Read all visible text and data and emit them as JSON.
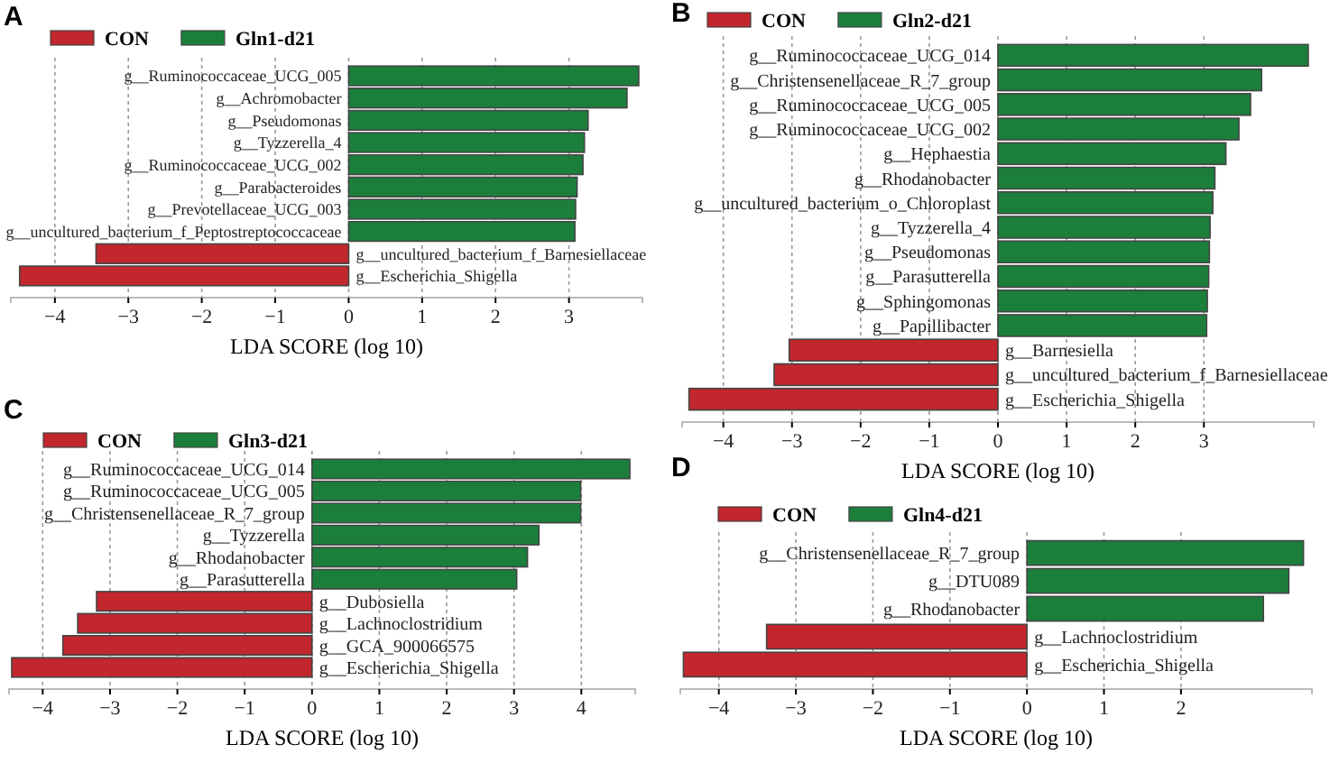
{
  "chart_data": [
    {
      "type": "bar",
      "orientation": "horizontal",
      "title": "A",
      "xlabel": "LDA SCORE (log 10)",
      "xlim": [
        -4.6,
        4.0
      ],
      "xticks": [
        -4,
        -3,
        -2,
        -1,
        0,
        1,
        2,
        3
      ],
      "grid": "x",
      "legend": "top left",
      "categories": [
        "g__Ruminococcaceae_UCG_005",
        "g__Achromobacter",
        "g__Pseudomonas",
        "g__Tyzzerella_4",
        "g__Ruminococcaceae_UCG_002",
        "g__Parabacteroides",
        "g__Prevotellaceae_UCG_003",
        "g__uncultured_bacterium_f_Peptostreptococcaceae",
        "g__uncultured_bacterium_f_Barnesiellaceae",
        "g__Escherichia_Shigella"
      ],
      "series": [
        {
          "name": "CON",
          "color": "#c1272d",
          "values": [
            null,
            null,
            null,
            null,
            null,
            null,
            null,
            null,
            -3.44,
            -4.48
          ]
        },
        {
          "name": "Gln1-d21",
          "color": "#1b7f3b",
          "values": [
            3.95,
            3.79,
            3.26,
            3.21,
            3.19,
            3.11,
            3.09,
            3.08,
            null,
            null
          ]
        }
      ]
    },
    {
      "type": "bar",
      "orientation": "horizontal",
      "title": "B",
      "xlabel": "LDA SCORE (log 10)",
      "xlim": [
        -4.6,
        4.6
      ],
      "xticks": [
        -4,
        -3,
        -2,
        -1,
        0,
        1,
        2,
        3
      ],
      "grid": "x",
      "legend": "top left",
      "categories": [
        "g__Ruminococcaceae_UCG_014",
        "g__Christensenellaceae_R_7_group",
        "g__Ruminococcaceae_UCG_005",
        "g__Ruminococcaceae_UCG_002",
        "g__Hephaestia",
        "g__Rhodanobacter",
        "g__uncultured_bacterium_o_Chloroplast",
        "g__Tyzzerella_4",
        "g__Pseudomonas",
        "g__Parasutterella",
        "g__Sphingomonas",
        "g__Papillibacter",
        "g__Barnesiella",
        "g__uncultured_bacterium_f_Barnesiellaceae",
        "g__Escherichia_Shigella"
      ],
      "series": [
        {
          "name": "CON",
          "color": "#c1272d",
          "values": [
            null,
            null,
            null,
            null,
            null,
            null,
            null,
            null,
            null,
            null,
            null,
            null,
            -3.04,
            -3.26,
            -4.5
          ]
        },
        {
          "name": "Gln2-d21",
          "color": "#1b7f3b",
          "values": [
            4.52,
            3.84,
            3.68,
            3.51,
            3.32,
            3.16,
            3.13,
            3.09,
            3.08,
            3.07,
            3.05,
            3.04,
            null,
            null,
            null
          ]
        }
      ]
    },
    {
      "type": "bar",
      "orientation": "horizontal",
      "title": "C",
      "xlabel": "LDA SCORE (log 10)",
      "xlim": [
        -4.5,
        4.8
      ],
      "xticks": [
        -4,
        -3,
        -2,
        -1,
        0,
        1,
        2,
        3,
        4
      ],
      "grid": "x",
      "legend": "top left",
      "categories": [
        "g__Ruminococcaceae_UCG_014",
        "g__Ruminococcaceae_UCG_005",
        "g__Christensenellaceae_R_7_group",
        "g__Tyzzerella",
        "g__Rhodanobacter",
        "g__Parasutterella",
        "g__Dubosiella",
        "g__Lachnoclostridium",
        "g__GCA_900066575",
        "g__Escherichia_Shigella"
      ],
      "series": [
        {
          "name": "CON",
          "color": "#c1272d",
          "values": [
            null,
            null,
            null,
            null,
            null,
            null,
            -3.2,
            -3.48,
            -3.7,
            -4.46
          ]
        },
        {
          "name": "Gln3-d21",
          "color": "#1b7f3b",
          "values": [
            4.72,
            3.99,
            3.99,
            3.37,
            3.2,
            3.04,
            null,
            null,
            null,
            null
          ]
        }
      ]
    },
    {
      "type": "bar",
      "orientation": "horizontal",
      "title": "D",
      "xlabel": "LDA SCORE (log 10)",
      "xlim": [
        -4.5,
        3.7
      ],
      "xticks": [
        -4,
        -3,
        -2,
        -1,
        0,
        1,
        2
      ],
      "grid": "x",
      "legend": "top left",
      "categories": [
        "g__Christensenellaceae_R_7_group",
        "g__DTU089",
        "g__Rhodanobacter",
        "g__Lachnoclostridium",
        "g__Escherichia_Shigella"
      ],
      "series": [
        {
          "name": "CON",
          "color": "#c1272d",
          "values": [
            null,
            null,
            null,
            -3.38,
            -4.46
          ]
        },
        {
          "name": "Gln4-d21",
          "color": "#1b7f3b",
          "values": [
            3.59,
            3.4,
            3.07,
            null,
            null
          ]
        }
      ]
    }
  ]
}
